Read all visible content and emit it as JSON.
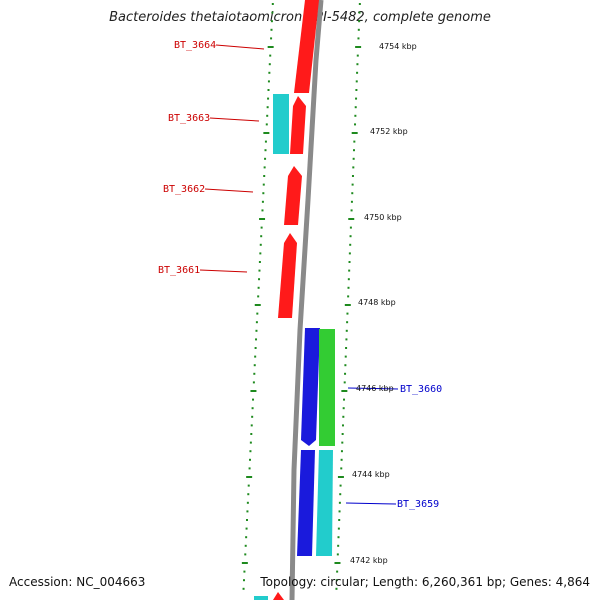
{
  "title": "Bacteroides thetaiotaomicron VPI-5482, complete genome",
  "footer": {
    "accession": "Accession: NC_004663",
    "summary": "Topology: circular; Length: 6,260,361 bp; Genes: 4,864"
  },
  "colors": {
    "forward_gene": "#ff1a1a",
    "cyan_gene": "#22cccc",
    "blue_gene": "#1a1adc",
    "green_gene": "#33cc33",
    "backbone": "#8a8a8a",
    "tick": "#1e8a1e",
    "label_red": "#cc0000",
    "label_blue": "#0000cc"
  },
  "position_labels": [
    "4754 kbp",
    "4752 kbp",
    "4750 kbp",
    "4748 kbp",
    "4746 kbp",
    "4744 kbp",
    "4742 kbp"
  ],
  "gene_labels": [
    {
      "name": "BT_3664",
      "color": "red"
    },
    {
      "name": "BT_3663",
      "color": "red"
    },
    {
      "name": "BT_3662",
      "color": "red"
    },
    {
      "name": "BT_3661",
      "color": "red"
    },
    {
      "name": "BT_3660",
      "color": "blue"
    },
    {
      "name": "BT_3659",
      "color": "blue"
    }
  ]
}
